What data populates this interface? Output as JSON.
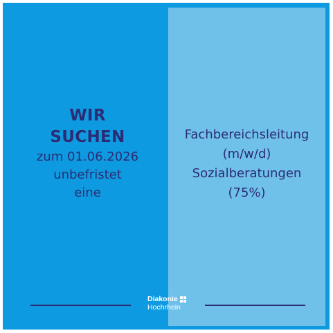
{
  "left": {
    "headline_line1": "WIR",
    "headline_line2": "SUCHEN",
    "line3": "zum 01.06.2026",
    "line4": "unbefristet",
    "line5": "eine"
  },
  "right": {
    "line1": "Fachbereichsleitung",
    "line2": "(m/w/d)",
    "line3": "Sozialberatungen",
    "line4": "(75%)"
  },
  "logo": {
    "name": "Diakonie",
    "region": "Hochrhein",
    "icon": "diakonie-cross-icon"
  },
  "colors": {
    "background": "#0e9ae0",
    "panel": "#70c1ea",
    "text": "#2b2c74",
    "logo": "#ffffff"
  }
}
